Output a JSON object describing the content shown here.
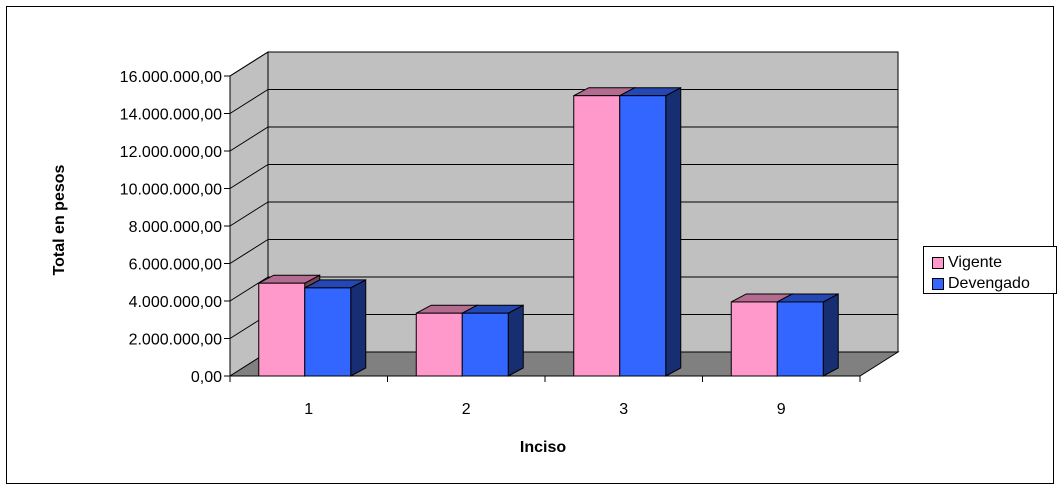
{
  "chart_data": {
    "type": "bar",
    "title": "",
    "xlabel": "Inciso",
    "ylabel": "Total en pesos",
    "categories": [
      "1",
      "2",
      "3",
      "9"
    ],
    "series": [
      {
        "name": "Vigente",
        "color": "#ff99cc",
        "values": [
          4950000,
          3350000,
          14950000,
          3950000
        ]
      },
      {
        "name": "Devengado",
        "color": "#3366ff",
        "values": [
          4700000,
          3350000,
          14950000,
          3950000
        ]
      }
    ],
    "ylim": [
      0,
      16000000
    ],
    "yticks": [
      "0,00",
      "2.000.000,00",
      "4.000.000,00",
      "6.000.000,00",
      "8.000.000,00",
      "10.000.000,00",
      "12.000.000,00",
      "14.000.000,00",
      "16.000.000,00"
    ],
    "grid": true,
    "legend_position": "right",
    "wall_color": "#c0c0c0",
    "floor_color": "#808080"
  }
}
